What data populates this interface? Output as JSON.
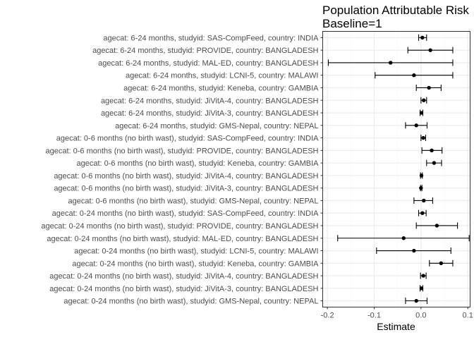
{
  "chart_data": {
    "type": "scatter",
    "title_lines": [
      "Population Attributable Risk",
      "Baseline=1"
    ],
    "xlabel": "Estimate",
    "ylabel": "",
    "xlim": [
      -0.21,
      0.105
    ],
    "x_ticks": [
      -0.2,
      -0.1,
      0.0,
      0.1
    ],
    "x_tick_labels": [
      "-0.2",
      "-0.1",
      "0.0",
      "0.1"
    ],
    "grid": true,
    "rows": [
      {
        "label": "agecat: 6-24 months, studyid: SAS-CompFeed, country: INDIA",
        "estimate": 0.003,
        "lower": -0.005,
        "upper": 0.012
      },
      {
        "label": "agecat: 6-24 months, studyid: PROVIDE, country: BANGLADESH",
        "estimate": 0.02,
        "lower": -0.028,
        "upper": 0.068
      },
      {
        "label": "agecat: 6-24 months, studyid: MAL-ED, country: BANGLADESH",
        "estimate": -0.065,
        "lower": -0.198,
        "upper": 0.068
      },
      {
        "label": "agecat: 6-24 months, studyid: LCNI-5, country: MALAWI",
        "estimate": -0.015,
        "lower": -0.098,
        "upper": 0.068
      },
      {
        "label": "agecat: 6-24 months, studyid: Keneba, country: GAMBIA",
        "estimate": 0.017,
        "lower": -0.01,
        "upper": 0.043
      },
      {
        "label": "agecat: 6-24 months, studyid: JiVitA-4, country: BANGLADESH",
        "estimate": 0.006,
        "lower": 0.0,
        "upper": 0.012
      },
      {
        "label": "agecat: 6-24 months, studyid: JiVitA-3, country: BANGLADESH",
        "estimate": 0.001,
        "lower": -0.002,
        "upper": 0.004
      },
      {
        "label": "agecat: 6-24 months, studyid: GMS-Nepal, country: NEPAL",
        "estimate": -0.01,
        "lower": -0.033,
        "upper": 0.013
      },
      {
        "label": "agecat: 0-6 months (no birth wast), studyid: SAS-CompFeed, country: INDIA",
        "estimate": 0.005,
        "lower": 0.0,
        "upper": 0.01
      },
      {
        "label": "agecat: 0-6 months (no birth wast), studyid: PROVIDE, country: BANGLADESH",
        "estimate": 0.023,
        "lower": 0.002,
        "upper": 0.045
      },
      {
        "label": "agecat: 0-6 months (no birth wast), studyid: Keneba, country: GAMBIA",
        "estimate": 0.028,
        "lower": 0.012,
        "upper": 0.044
      },
      {
        "label": "agecat: 0-6 months (no birth wast), studyid: JiVitA-4, country: BANGLADESH",
        "estimate": 0.001,
        "lower": -0.001,
        "upper": 0.003
      },
      {
        "label": "agecat: 0-6 months (no birth wast), studyid: JiVitA-3, country: BANGLADESH",
        "estimate": 0.0,
        "lower": -0.001,
        "upper": 0.002
      },
      {
        "label": "agecat: 0-6 months (no birth wast), studyid: GMS-Nepal, country: NEPAL",
        "estimate": 0.006,
        "lower": -0.015,
        "upper": 0.025
      },
      {
        "label": "agecat: 0-24 months (no birth wast), studyid: SAS-CompFeed, country: INDIA",
        "estimate": 0.003,
        "lower": -0.005,
        "upper": 0.011
      },
      {
        "label": "agecat: 0-24 months (no birth wast), studyid: PROVIDE, country: BANGLADESH",
        "estimate": 0.034,
        "lower": -0.01,
        "upper": 0.078
      },
      {
        "label": "agecat: 0-24 months (no birth wast), studyid: MAL-ED, country: BANGLADESH",
        "estimate": -0.037,
        "lower": -0.178,
        "upper": 0.103
      },
      {
        "label": "agecat: 0-24 months (no birth wast), studyid: LCNI-5, country: MALAWI",
        "estimate": -0.015,
        "lower": -0.095,
        "upper": 0.064
      },
      {
        "label": "agecat: 0-24 months (no birth wast), studyid: Keneba, country: GAMBIA",
        "estimate": 0.043,
        "lower": 0.018,
        "upper": 0.068
      },
      {
        "label": "agecat: 0-24 months (no birth wast), studyid: JiVitA-4, country: BANGLADESH",
        "estimate": 0.005,
        "lower": -0.001,
        "upper": 0.011
      },
      {
        "label": "agecat: 0-24 months (no birth wast), studyid: JiVitA-3, country: BANGLADESH",
        "estimate": 0.001,
        "lower": -0.002,
        "upper": 0.004
      },
      {
        "label": "agecat: 0-24 months (no birth wast), studyid: GMS-Nepal, country: NEPAL",
        "estimate": -0.01,
        "lower": -0.033,
        "upper": 0.013
      }
    ]
  },
  "colors": {
    "panel_border": "#333333",
    "grid_major": "#ebebeb",
    "grid_minor": "#f5f5f5",
    "axis_text": "#4d4d4d",
    "mark": "#000000"
  }
}
